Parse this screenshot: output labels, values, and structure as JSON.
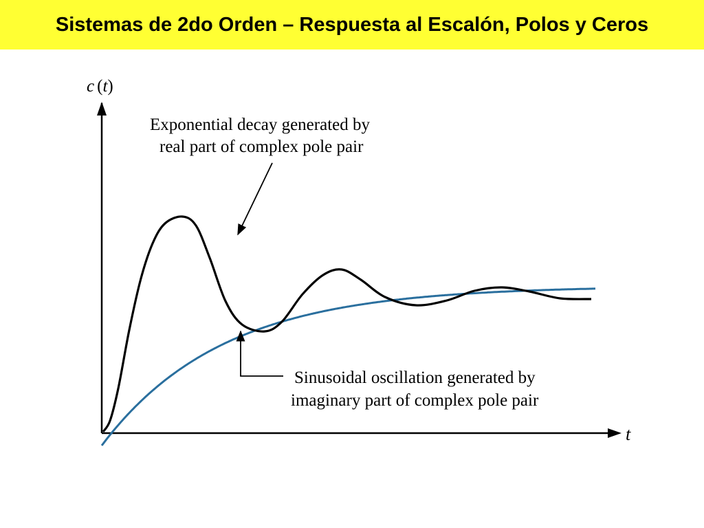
{
  "slide": {
    "title": "Sistemas de 2do Orden – Respuesta al Escalón, Polos y Ceros",
    "title_bg": "#ffff33"
  },
  "diagram": {
    "y_axis_label": {
      "symbol": "c",
      "open": "(",
      "var": "t",
      "close": ")"
    },
    "x_axis_label": "t",
    "envelope_annotation": {
      "line1": "Exponential decay generated by",
      "line2": "real part of complex pole pair"
    },
    "oscillation_annotation": {
      "line1": "Sinusoidal oscillation generated by",
      "line2": "imaginary part of complex pole pair"
    },
    "colors": {
      "envelope": "#2a6f9e",
      "response": "#000000",
      "axes": "#000000"
    }
  }
}
